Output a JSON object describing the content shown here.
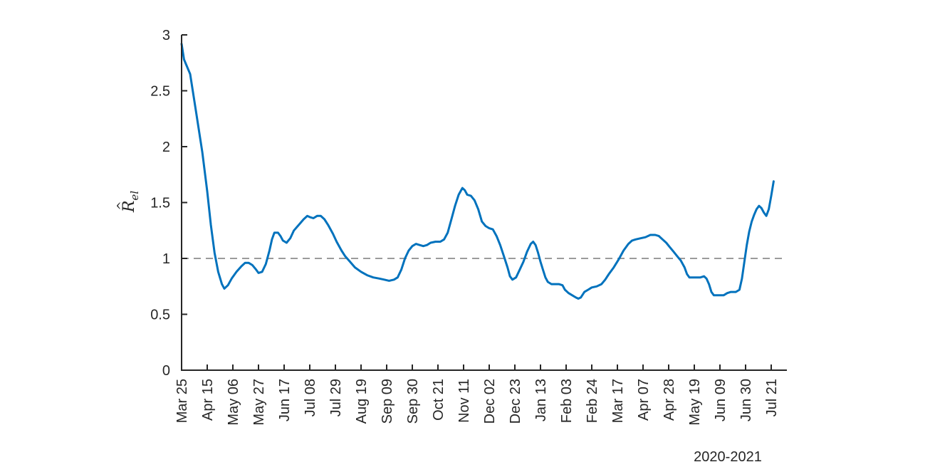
{
  "chart_data": {
    "type": "line",
    "title": "",
    "xlabel": "2020-2021",
    "ylabel_symbol": "R",
    "ylabel_subscript": "el",
    "ylim": [
      0,
      3
    ],
    "y_ticks": [
      0,
      0.5,
      1,
      1.5,
      2,
      2.5,
      3
    ],
    "y_tick_labels": [
      "0",
      "0.5",
      "1",
      "1.5",
      "2",
      "2.5",
      "3"
    ],
    "x_ticks": [
      "Mar 25",
      "Apr 15",
      "May 06",
      "May 27",
      "Jun 17",
      "Jul 08",
      "Jul 29",
      "Aug 19",
      "Sep 09",
      "Sep 30",
      "Oct 21",
      "Nov 11",
      "Dec 02",
      "Dec 23",
      "Jan 13",
      "Feb 03",
      "Feb 24",
      "Mar 17",
      "Apr 07",
      "Apr 28",
      "May 19",
      "Jun 09",
      "Jun 30",
      "Jul 21"
    ],
    "x_range_days": [
      0,
      497
    ],
    "reference_line": {
      "y": 1,
      "style": "dashed",
      "color": "#9b9b9b"
    },
    "series": [
      {
        "color": "#0072bd",
        "points": [
          [
            0,
            2.92
          ],
          [
            2,
            2.78
          ],
          [
            7,
            2.65
          ],
          [
            12,
            2.3
          ],
          [
            17,
            1.95
          ],
          [
            21,
            1.6
          ],
          [
            24,
            1.3
          ],
          [
            27,
            1.05
          ],
          [
            30,
            0.88
          ],
          [
            33,
            0.77
          ],
          [
            35,
            0.73
          ],
          [
            38,
            0.76
          ],
          [
            41,
            0.82
          ],
          [
            45,
            0.88
          ],
          [
            49,
            0.93
          ],
          [
            52,
            0.96
          ],
          [
            55,
            0.96
          ],
          [
            58,
            0.94
          ],
          [
            61,
            0.9
          ],
          [
            63,
            0.87
          ],
          [
            66,
            0.88
          ],
          [
            69,
            0.95
          ],
          [
            72,
            1.07
          ],
          [
            74,
            1.17
          ],
          [
            76,
            1.23
          ],
          [
            79,
            1.23
          ],
          [
            81,
            1.2
          ],
          [
            83,
            1.16
          ],
          [
            86,
            1.14
          ],
          [
            89,
            1.18
          ],
          [
            92,
            1.25
          ],
          [
            96,
            1.3
          ],
          [
            100,
            1.35
          ],
          [
            103,
            1.38
          ],
          [
            105,
            1.37
          ],
          [
            108,
            1.36
          ],
          [
            111,
            1.38
          ],
          [
            114,
            1.38
          ],
          [
            117,
            1.35
          ],
          [
            120,
            1.3
          ],
          [
            124,
            1.22
          ],
          [
            127,
            1.15
          ],
          [
            131,
            1.07
          ],
          [
            134,
            1.02
          ],
          [
            138,
            0.97
          ],
          [
            142,
            0.92
          ],
          [
            147,
            0.88
          ],
          [
            152,
            0.85
          ],
          [
            157,
            0.83
          ],
          [
            162,
            0.82
          ],
          [
            166,
            0.81
          ],
          [
            170,
            0.8
          ],
          [
            174,
            0.81
          ],
          [
            177,
            0.83
          ],
          [
            180,
            0.9
          ],
          [
            183,
            1.0
          ],
          [
            186,
            1.07
          ],
          [
            189,
            1.11
          ],
          [
            192,
            1.13
          ],
          [
            195,
            1.12
          ],
          [
            198,
            1.11
          ],
          [
            201,
            1.12
          ],
          [
            204,
            1.14
          ],
          [
            208,
            1.15
          ],
          [
            212,
            1.15
          ],
          [
            215,
            1.17
          ],
          [
            218,
            1.23
          ],
          [
            221,
            1.35
          ],
          [
            224,
            1.47
          ],
          [
            227,
            1.57
          ],
          [
            230,
            1.63
          ],
          [
            232,
            1.61
          ],
          [
            234,
            1.57
          ],
          [
            237,
            1.56
          ],
          [
            240,
            1.52
          ],
          [
            243,
            1.44
          ],
          [
            246,
            1.33
          ],
          [
            249,
            1.29
          ],
          [
            252,
            1.27
          ],
          [
            255,
            1.26
          ],
          [
            258,
            1.2
          ],
          [
            261,
            1.12
          ],
          [
            264,
            1.02
          ],
          [
            267,
            0.92
          ],
          [
            269,
            0.84
          ],
          [
            271,
            0.81
          ],
          [
            274,
            0.83
          ],
          [
            277,
            0.9
          ],
          [
            280,
            0.97
          ],
          [
            283,
            1.06
          ],
          [
            286,
            1.13
          ],
          [
            288,
            1.15
          ],
          [
            290,
            1.12
          ],
          [
            292,
            1.05
          ],
          [
            294,
            0.97
          ],
          [
            296,
            0.9
          ],
          [
            298,
            0.83
          ],
          [
            300,
            0.79
          ],
          [
            303,
            0.77
          ],
          [
            306,
            0.77
          ],
          [
            309,
            0.77
          ],
          [
            312,
            0.76
          ],
          [
            314,
            0.72
          ],
          [
            317,
            0.69
          ],
          [
            320,
            0.67
          ],
          [
            323,
            0.65
          ],
          [
            325,
            0.64
          ],
          [
            327,
            0.65
          ],
          [
            330,
            0.7
          ],
          [
            333,
            0.72
          ],
          [
            336,
            0.74
          ],
          [
            340,
            0.75
          ],
          [
            344,
            0.77
          ],
          [
            347,
            0.81
          ],
          [
            350,
            0.86
          ],
          [
            354,
            0.92
          ],
          [
            358,
            0.99
          ],
          [
            362,
            1.07
          ],
          [
            366,
            1.13
          ],
          [
            369,
            1.16
          ],
          [
            372,
            1.17
          ],
          [
            376,
            1.18
          ],
          [
            380,
            1.19
          ],
          [
            384,
            1.21
          ],
          [
            388,
            1.21
          ],
          [
            391,
            1.2
          ],
          [
            394,
            1.17
          ],
          [
            397,
            1.14
          ],
          [
            400,
            1.1
          ],
          [
            403,
            1.06
          ],
          [
            406,
            1.02
          ],
          [
            409,
            0.98
          ],
          [
            412,
            0.92
          ],
          [
            414,
            0.86
          ],
          [
            416,
            0.83
          ],
          [
            419,
            0.83
          ],
          [
            422,
            0.83
          ],
          [
            425,
            0.83
          ],
          [
            428,
            0.84
          ],
          [
            430,
            0.82
          ],
          [
            432,
            0.77
          ],
          [
            434,
            0.7
          ],
          [
            436,
            0.67
          ],
          [
            438,
            0.67
          ],
          [
            441,
            0.67
          ],
          [
            444,
            0.67
          ],
          [
            447,
            0.69
          ],
          [
            450,
            0.7
          ],
          [
            454,
            0.7
          ],
          [
            457,
            0.72
          ],
          [
            459,
            0.82
          ],
          [
            461,
            0.97
          ],
          [
            463,
            1.12
          ],
          [
            465,
            1.24
          ],
          [
            467,
            1.33
          ],
          [
            469,
            1.39
          ],
          [
            471,
            1.44
          ],
          [
            473,
            1.47
          ],
          [
            475,
            1.45
          ],
          [
            477,
            1.41
          ],
          [
            479,
            1.38
          ],
          [
            481,
            1.44
          ],
          [
            483,
            1.56
          ],
          [
            485,
            1.69
          ]
        ]
      }
    ]
  }
}
